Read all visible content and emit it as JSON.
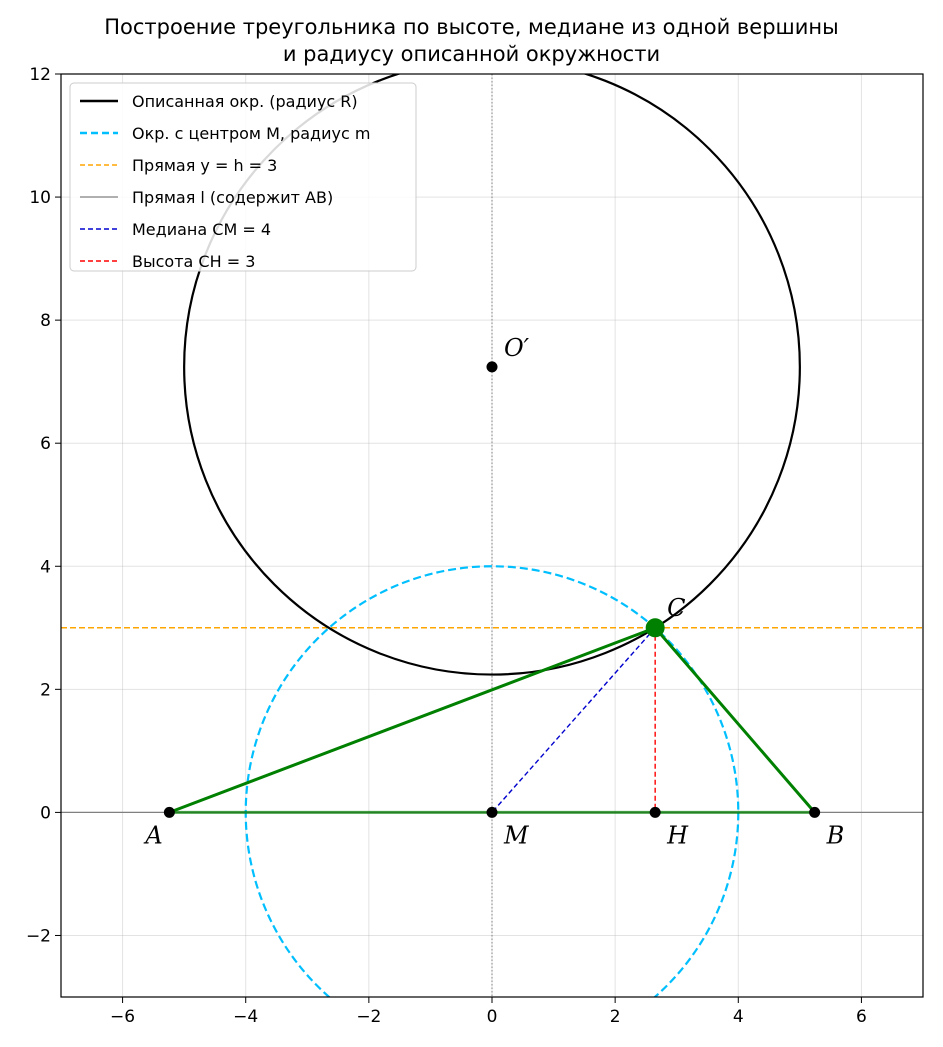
{
  "title_lines": [
    "Построение треугольника по высоте, медиане из одной вершины",
    "и радиусу описанной окружности"
  ],
  "chart_data": {
    "type": "line",
    "title": "Построение треугольника по высоте, медиане из одной вершины и радиусу описанной окружности",
    "xlim": [
      -7,
      7
    ],
    "ylim": [
      -3,
      12
    ],
    "xticks": [
      -6,
      -4,
      -2,
      0,
      2,
      4,
      6
    ],
    "yticks": [
      -2,
      0,
      2,
      4,
      6,
      8,
      10,
      12
    ],
    "xtick_labels": [
      "−6",
      "−4",
      "−2",
      "0",
      "2",
      "4",
      "6"
    ],
    "ytick_labels": [
      "−2",
      "0",
      "2",
      "4",
      "6",
      "8",
      "10",
      "12"
    ],
    "grid": true,
    "legend_position": "top-left",
    "legend": [
      {
        "id": "circum",
        "text": "Описанная окр. (радиус R)",
        "color": "#000000",
        "dash": "solid"
      },
      {
        "id": "mcircle",
        "text": "Окр. с центром M, радиус m",
        "color": "#00bfff",
        "dash": "dashed"
      },
      {
        "id": "hline",
        "text": "Прямая y = h = 3",
        "color": "#ffa500",
        "dash": "dashed"
      },
      {
        "id": "lline",
        "text": "Прямая l (содержит AB)",
        "color": "#808080",
        "dash": "solid"
      },
      {
        "id": "median",
        "text": "Медиана CM = 4",
        "color": "#0000cd",
        "dash": "dashed"
      },
      {
        "id": "height",
        "text": "Высота CH = 3",
        "color": "#ff0000",
        "dash": "dashed"
      }
    ],
    "circles": [
      {
        "id": "circum",
        "cx": 0,
        "cy": 7.24,
        "r": 5.0,
        "color": "#000000"
      },
      {
        "id": "mcircle",
        "cx": 0,
        "cy": 0,
        "r": 4.0,
        "color": "#00bfff"
      }
    ],
    "points": [
      {
        "id": "A",
        "label": "A",
        "x": -5.24,
        "y": 0
      },
      {
        "id": "M",
        "label": "M",
        "x": 0,
        "y": 0
      },
      {
        "id": "H",
        "label": "H",
        "x": 2.65,
        "y": 0
      },
      {
        "id": "B",
        "label": "B",
        "x": 5.24,
        "y": 0
      },
      {
        "id": "C",
        "label": "C",
        "x": 2.65,
        "y": 3
      },
      {
        "id": "O",
        "label": "O′",
        "x": 0,
        "y": 7.24
      }
    ],
    "triangle": {
      "vertices": [
        "A",
        "B",
        "C"
      ],
      "color": "#008000"
    },
    "h_value": 3,
    "median_value": 4
  }
}
